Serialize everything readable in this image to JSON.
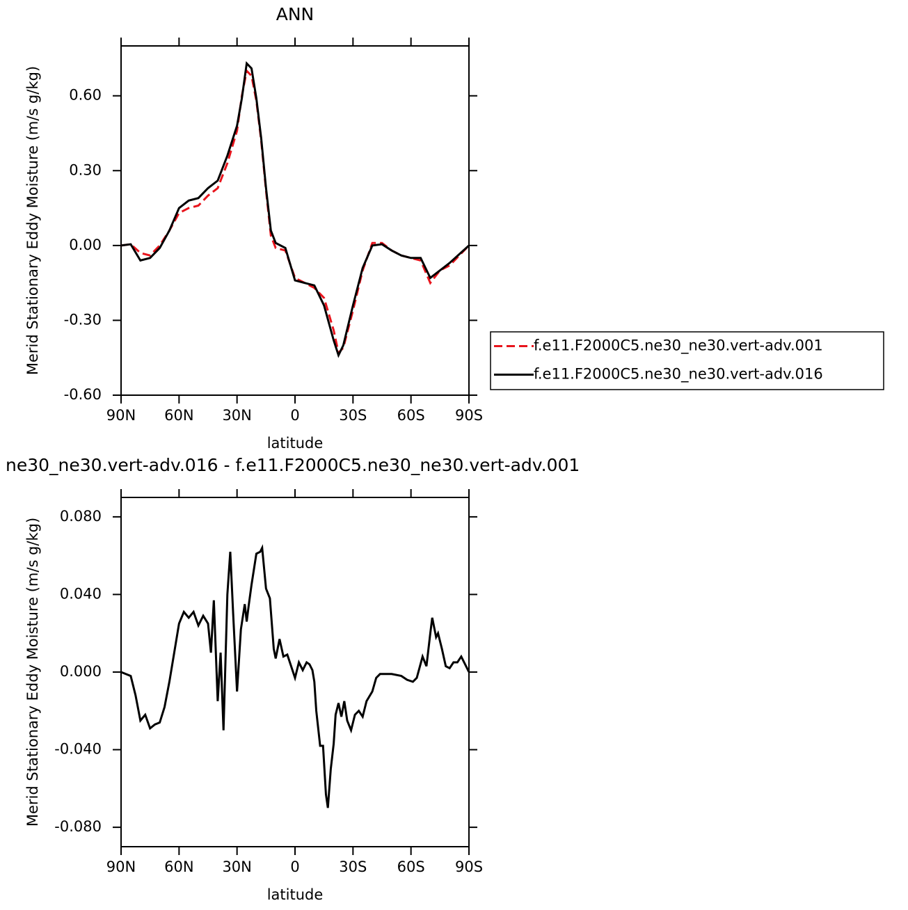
{
  "chart_data": [
    {
      "type": "line",
      "title": "ANN",
      "x_label": "latitude",
      "y_label": "Merid Stationary Eddy Moisture (m/s g/kg)",
      "xlim": [
        90,
        -90
      ],
      "ylim": [
        -0.6,
        0.8
      ],
      "xticks": [
        {
          "value": 90,
          "label": "90N"
        },
        {
          "value": 60,
          "label": "60N"
        },
        {
          "value": 30,
          "label": "30N"
        },
        0,
        {
          "value": -30,
          "label": "30S"
        },
        {
          "value": -60,
          "label": "60S"
        },
        {
          "value": -90,
          "label": "90S"
        }
      ],
      "yticks": [
        {
          "value": -0.6,
          "label": "-0.60"
        },
        {
          "value": -0.3,
          "label": "-0.30"
        },
        {
          "value": 0,
          "label": "0.00"
        },
        {
          "value": 0.3,
          "label": "0.30"
        },
        {
          "value": 0.6,
          "label": "0.60"
        }
      ],
      "legend": "right",
      "series": [
        {
          "name": "f.e11.F2000C5.ne30_ne30.vert-adv.001",
          "color": "#e8141c",
          "line_style": "dashed",
          "x": [
            90,
            85,
            80,
            75,
            70,
            65,
            60,
            55,
            50,
            45,
            40,
            35,
            30,
            27.5,
            25,
            22.5,
            20,
            17.5,
            15,
            12.5,
            10,
            5,
            0,
            -5,
            -10,
            -15,
            -20,
            -22.5,
            -25,
            -30,
            -35,
            -40,
            -45,
            -50,
            -55,
            -60,
            -65,
            -70,
            -75,
            -80,
            -85,
            -90
          ],
          "values": [
            0,
            0.005,
            -0.03,
            -0.04,
            0,
            0.06,
            0.13,
            0.15,
            0.16,
            0.2,
            0.23,
            0.33,
            0.46,
            0.6,
            0.7,
            0.68,
            0.58,
            0.42,
            0.22,
            0.04,
            -0.01,
            -0.02,
            -0.13,
            -0.15,
            -0.17,
            -0.21,
            -0.34,
            -0.43,
            -0.41,
            -0.26,
            -0.1,
            0.01,
            0.01,
            -0.02,
            -0.04,
            -0.05,
            -0.06,
            -0.15,
            -0.1,
            -0.08,
            -0.04,
            0
          ]
        },
        {
          "name": "f.e11.F2000C5.ne30_ne30.vert-adv.016",
          "color": "#000000",
          "line_style": "solid",
          "x": [
            90,
            85,
            80,
            75,
            70,
            65,
            60,
            55,
            50,
            45,
            40,
            35,
            30,
            27.5,
            25,
            22.5,
            20,
            17.5,
            15,
            12.5,
            10,
            5,
            0,
            -5,
            -10,
            -15,
            -20,
            -22.5,
            -25,
            -30,
            -35,
            -40,
            -45,
            -50,
            -55,
            -60,
            -65,
            -70,
            -75,
            -80,
            -85,
            -90
          ],
          "values": [
            0,
            0.005,
            -0.06,
            -0.05,
            -0.01,
            0.06,
            0.15,
            0.18,
            0.19,
            0.23,
            0.26,
            0.36,
            0.48,
            0.59,
            0.73,
            0.71,
            0.59,
            0.43,
            0.23,
            0.06,
            0.01,
            -0.01,
            -0.14,
            -0.15,
            -0.16,
            -0.24,
            -0.38,
            -0.44,
            -0.4,
            -0.24,
            -0.09,
            0,
            0.005,
            -0.02,
            -0.04,
            -0.05,
            -0.05,
            -0.13,
            -0.1,
            -0.07,
            -0.035,
            0
          ]
        }
      ]
    },
    {
      "type": "line",
      "title": "ne30_ne30.vert-adv.016 - f.e11.F2000C5.ne30_ne30.vert-adv.001",
      "x_label": "latitude",
      "y_label": "Merid Stationary Eddy Moisture (m/s g/kg)",
      "xlim": [
        90,
        -90
      ],
      "ylim": [
        -0.09,
        0.09
      ],
      "xticks": [
        {
          "value": 90,
          "label": "90N"
        },
        {
          "value": 60,
          "label": "60N"
        },
        {
          "value": 30,
          "label": "30N"
        },
        0,
        {
          "value": -30,
          "label": "30S"
        },
        {
          "value": -60,
          "label": "60S"
        },
        {
          "value": -90,
          "label": "90S"
        }
      ],
      "yticks": [
        {
          "value": -0.08,
          "label": "-0.080"
        },
        {
          "value": -0.04,
          "label": "-0.040"
        },
        {
          "value": 0,
          "label": "0.000"
        },
        {
          "value": 0.04,
          "label": "0.040"
        },
        {
          "value": 0.08,
          "label": "0.080"
        }
      ],
      "color": "#000000",
      "x": [
        90,
        85,
        82.5,
        80,
        77.5,
        75,
        72.5,
        70,
        67.5,
        65,
        62.5,
        60,
        57.5,
        55,
        52.5,
        50,
        47.5,
        45,
        43.5,
        42,
        40,
        38.5,
        37,
        35,
        33.5,
        32,
        30,
        28,
        26,
        25,
        24,
        22.5,
        20,
        18,
        17,
        15,
        13,
        11,
        10,
        8,
        6,
        4,
        2,
        0,
        -2,
        -4,
        -6,
        -7.5,
        -9,
        -10,
        -11,
        -13,
        -14.5,
        -16,
        -17,
        -18.5,
        -20,
        -21,
        -22.5,
        -24,
        -25.5,
        -27,
        -29,
        -31,
        -33,
        -35,
        -37,
        -40,
        -42,
        -44,
        -50,
        -55,
        -58,
        -61,
        -63,
        -66,
        -68,
        -70,
        -71,
        -73,
        -74,
        -76,
        -78,
        -80,
        -82,
        -84,
        -86,
        -88,
        -90
      ],
      "values": [
        0,
        -0.002,
        -0.012,
        -0.025,
        -0.022,
        -0.029,
        -0.027,
        -0.026,
        -0.018,
        -0.005,
        0.01,
        0.025,
        0.031,
        0.028,
        0.031,
        0.024,
        0.029,
        0.025,
        0.01,
        0.037,
        -0.015,
        0.01,
        -0.03,
        0.04,
        0.062,
        0.03,
        -0.01,
        0.022,
        0.035,
        0.026,
        0.034,
        0.045,
        0.061,
        0.062,
        0.064,
        0.043,
        0.038,
        0.012,
        0.007,
        0.017,
        0.008,
        0.009,
        0.003,
        -0.003,
        0.005,
        0.001,
        0.005,
        0.004,
        0.001,
        -0.005,
        -0.02,
        -0.038,
        -0.038,
        -0.063,
        -0.07,
        -0.05,
        -0.037,
        -0.022,
        -0.016,
        -0.023,
        -0.015,
        -0.025,
        -0.03,
        -0.022,
        -0.02,
        -0.023,
        -0.015,
        -0.01,
        -0.003,
        -0.001,
        -0.001,
        -0.002,
        -0.004,
        -0.005,
        -0.003,
        0.008,
        0.003,
        0.02,
        0.028,
        0.018,
        0.02,
        0.012,
        0.003,
        0.002,
        0.005,
        0.005,
        0.008,
        0.004,
        0
      ]
    }
  ]
}
